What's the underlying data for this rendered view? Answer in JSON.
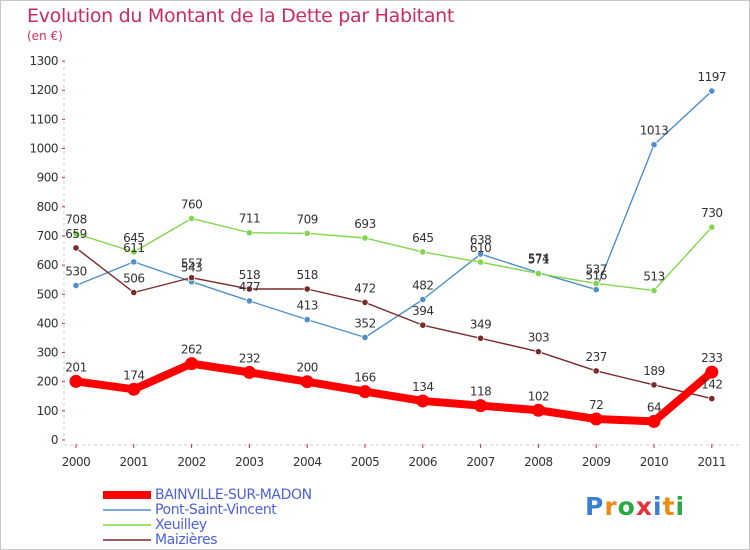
{
  "header": {
    "title": "Evolution du Montant de la Dette par Habitant",
    "unit": "(en €)"
  },
  "logo": {
    "text": "Proxiti",
    "colors": [
      "#3a7fd4",
      "#f08a16",
      "#2aa845",
      "#e8323a",
      "#3a7fd4",
      "#f08a16",
      "#2aa845"
    ]
  },
  "chart_data": {
    "type": "line",
    "x": [
      "2000",
      "2001",
      "2002",
      "2003",
      "2004",
      "2005",
      "2006",
      "2007",
      "2008",
      "2009",
      "2010",
      "2011"
    ],
    "ylim": [
      0,
      1300
    ],
    "yticks": [
      0,
      100,
      200,
      300,
      400,
      500,
      600,
      700,
      800,
      900,
      1000,
      1100,
      1200,
      1300
    ],
    "grid": false,
    "legend_position": "bottom-left",
    "series": [
      {
        "name": "BAINVILLE-SUR-MADON",
        "color": "#ff0000",
        "emphasis": true,
        "values": [
          201,
          174,
          262,
          232,
          200,
          166,
          134,
          118,
          102,
          72,
          64,
          233
        ]
      },
      {
        "name": "Pont-Saint-Vincent",
        "color": "#4f8fc9",
        "emphasis": false,
        "values": [
          530,
          611,
          543,
          477,
          413,
          352,
          482,
          638,
          574,
          516,
          1013,
          1197
        ]
      },
      {
        "name": "Xeuilley",
        "color": "#82d64c",
        "emphasis": false,
        "values": [
          708,
          645,
          760,
          711,
          709,
          693,
          645,
          610,
          571,
          537,
          513,
          730
        ]
      },
      {
        "name": "Maizières",
        "color": "#7a2a2a",
        "emphasis": false,
        "values": [
          659,
          506,
          557,
          518,
          518,
          472,
          394,
          349,
          303,
          237,
          189,
          142
        ]
      }
    ]
  }
}
